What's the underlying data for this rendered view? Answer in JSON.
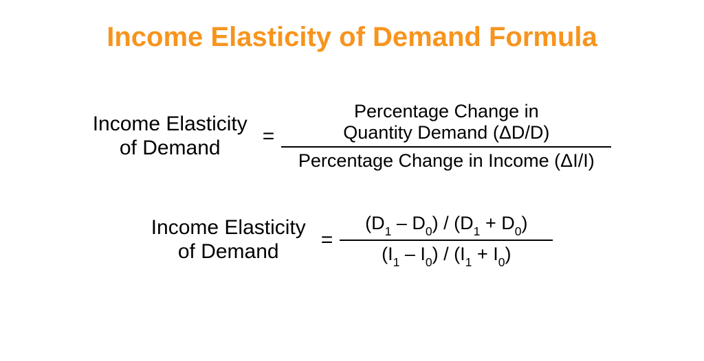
{
  "title": {
    "text": "Income Elasticity of Demand Formula",
    "color": "#f7941d",
    "fontsize": 40,
    "weight": "bold"
  },
  "text_color": "#000000",
  "background_color": "#ffffff",
  "formula1": {
    "lhs_line1": "Income Elasticity",
    "lhs_line2": "of Demand",
    "lhs_fontsize": 30,
    "eq": "=",
    "eq_fontsize": 30,
    "numerator_line1": "Percentage Change in",
    "numerator_line2_prefix": "Quantity Demand (",
    "numerator_line2_delta": "Δ",
    "numerator_line2_suffix": "D/D)",
    "denominator_prefix": "Percentage Change in Income (",
    "denominator_delta": "Δ",
    "denominator_suffix": "I/I)",
    "rhs_fontsize": 27,
    "frac_line_width": 480
  },
  "formula2": {
    "lhs_line1": "Income Elasticity",
    "lhs_line2": "of Demand",
    "lhs_fontsize": 30,
    "eq": "=",
    "eq_fontsize": 30,
    "rhs_fontsize": 27,
    "numerator": {
      "p1": "(D",
      "s1": "1",
      "p2": " – D",
      "s2": "0",
      "p3": ") / (D",
      "s3": "1",
      "p4": " + D",
      "s4": "0",
      "p5": ")"
    },
    "denominator": {
      "p1": "(I",
      "s1": "1",
      "p2": " – I",
      "s2": "0",
      "p3": ") / (I",
      "s3": "1",
      "p4": " + I",
      "s4": "0",
      "p5": ")"
    },
    "frac_line_width": 310
  }
}
